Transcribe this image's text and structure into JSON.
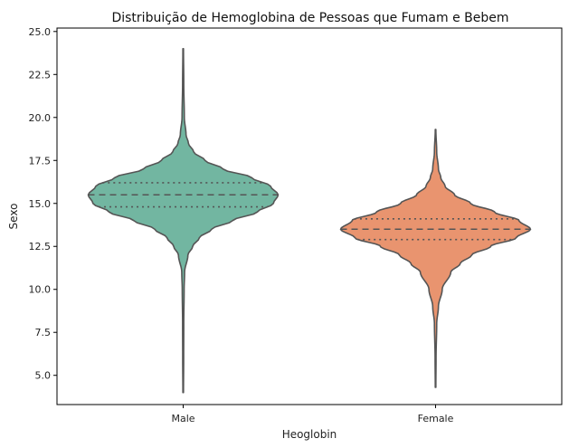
{
  "chart_data": {
    "type": "violin",
    "title": "Distribuição de Hemoglobina de Pessoas que Fumam e Bebem",
    "xlabel": "Heoglobin",
    "ylabel": "Sexo",
    "ylim": [
      3.3,
      25.2
    ],
    "yticks": [
      "5.0",
      "7.5",
      "10.0",
      "12.5",
      "15.0",
      "17.5",
      "20.0",
      "22.5",
      "25.0"
    ],
    "ytick_values": [
      5.0,
      7.5,
      10.0,
      12.5,
      15.0,
      17.5,
      20.0,
      22.5,
      25.0
    ],
    "categories": [
      "Male",
      "Female"
    ],
    "colors": [
      "#72b6a1",
      "#e9946f"
    ],
    "edge_color": "#555555",
    "inner": "quartile",
    "series": [
      {
        "name": "Male",
        "min": 4.0,
        "max": 24.0,
        "q1": 14.8,
        "median": 15.5,
        "q3": 16.2,
        "density_profile": [
          [
            4.0,
            0.003
          ],
          [
            6.0,
            0.005
          ],
          [
            8.0,
            0.006
          ],
          [
            10.0,
            0.01
          ],
          [
            11.0,
            0.015
          ],
          [
            12.0,
            0.05
          ],
          [
            12.5,
            0.1
          ],
          [
            13.0,
            0.17
          ],
          [
            13.5,
            0.3
          ],
          [
            14.0,
            0.52
          ],
          [
            14.5,
            0.78
          ],
          [
            15.0,
            0.95
          ],
          [
            15.5,
            1.0
          ],
          [
            16.0,
            0.92
          ],
          [
            16.5,
            0.72
          ],
          [
            17.0,
            0.42
          ],
          [
            17.5,
            0.23
          ],
          [
            18.0,
            0.11
          ],
          [
            18.5,
            0.055
          ],
          [
            19.0,
            0.03
          ],
          [
            20.0,
            0.012
          ],
          [
            22.0,
            0.006
          ],
          [
            24.0,
            0.003
          ]
        ]
      },
      {
        "name": "Female",
        "min": 4.3,
        "max": 19.3,
        "q1": 12.9,
        "median": 13.5,
        "q3": 14.1,
        "density_profile": [
          [
            4.3,
            0.003
          ],
          [
            6.0,
            0.005
          ],
          [
            8.0,
            0.012
          ],
          [
            9.0,
            0.03
          ],
          [
            10.0,
            0.07
          ],
          [
            11.0,
            0.16
          ],
          [
            11.5,
            0.26
          ],
          [
            12.0,
            0.38
          ],
          [
            12.5,
            0.58
          ],
          [
            13.0,
            0.85
          ],
          [
            13.5,
            1.0
          ],
          [
            14.0,
            0.88
          ],
          [
            14.5,
            0.62
          ],
          [
            15.0,
            0.37
          ],
          [
            15.5,
            0.2
          ],
          [
            16.0,
            0.1
          ],
          [
            16.5,
            0.055
          ],
          [
            17.0,
            0.03
          ],
          [
            18.0,
            0.012
          ],
          [
            19.3,
            0.003
          ]
        ]
      }
    ]
  }
}
